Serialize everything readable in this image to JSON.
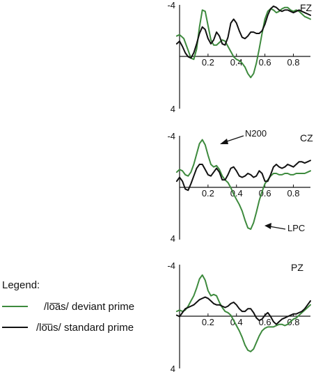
{
  "colors": {
    "deviant": "#3d8a3d",
    "standard": "#111111",
    "axis": "#111111"
  },
  "legend": {
    "title": "Legend:",
    "deviant_label": "/lo͞as/ deviant prime",
    "standard_label": "/lo͞us/  standard prime"
  },
  "chart_data": [
    {
      "type": "line",
      "title": "FZ",
      "xlim": [
        0,
        0.92
      ],
      "ylim": [
        -4,
        4
      ],
      "y_inverted": true,
      "xticks": [
        0.2,
        0.4,
        0.6,
        0.8
      ],
      "xtick_labels": [
        "0.2",
        "0.4",
        "0.6",
        "0.8"
      ],
      "ytick_labels": [
        "-4",
        "4"
      ],
      "grid": false,
      "annotations": [],
      "series": [
        {
          "key": "deviant",
          "x": [
            -0.02,
            0,
            0.03,
            0.06,
            0.08,
            0.1,
            0.12,
            0.14,
            0.16,
            0.18,
            0.2,
            0.22,
            0.24,
            0.26,
            0.28,
            0.3,
            0.32,
            0.34,
            0.36,
            0.38,
            0.4,
            0.42,
            0.44,
            0.46,
            0.48,
            0.5,
            0.52,
            0.54,
            0.56,
            0.58,
            0.6,
            0.62,
            0.64,
            0.66,
            0.68,
            0.7,
            0.72,
            0.74,
            0.76,
            0.78,
            0.8,
            0.82,
            0.84,
            0.86,
            0.88,
            0.9,
            0.92
          ],
          "y": [
            -1.6,
            -1.7,
            -1.4,
            -0.5,
            0.1,
            0.2,
            -0.6,
            -2.3,
            -3.6,
            -3.5,
            -2.4,
            -1.3,
            -0.9,
            -0.9,
            -1.1,
            -1.3,
            -1.2,
            -0.8,
            -0.4,
            0.0,
            0.2,
            0.3,
            0.5,
            0.8,
            1.3,
            1.6,
            1.3,
            0.5,
            -0.6,
            -1.8,
            -2.9,
            -3.5,
            -3.7,
            -3.6,
            -3.4,
            -3.5,
            -3.7,
            -3.8,
            -3.8,
            -3.6,
            -3.5,
            -3.6,
            -3.5,
            -3.3,
            -3.1,
            -3.0,
            -2.9
          ]
        },
        {
          "key": "standard",
          "x": [
            -0.02,
            0,
            0.02,
            0.04,
            0.06,
            0.08,
            0.1,
            0.12,
            0.14,
            0.16,
            0.18,
            0.2,
            0.22,
            0.24,
            0.26,
            0.28,
            0.3,
            0.32,
            0.34,
            0.36,
            0.38,
            0.4,
            0.42,
            0.44,
            0.46,
            0.48,
            0.5,
            0.52,
            0.54,
            0.56,
            0.58,
            0.6,
            0.62,
            0.64,
            0.66,
            0.68,
            0.7,
            0.72,
            0.74,
            0.76,
            0.78,
            0.8,
            0.82,
            0.84,
            0.86,
            0.88,
            0.9,
            0.92
          ],
          "y": [
            -1.0,
            -1.2,
            -0.8,
            -0.3,
            0.0,
            0.1,
            -0.3,
            -1.0,
            -1.8,
            -2.3,
            -2.1,
            -1.4,
            -1.0,
            -1.3,
            -1.9,
            -1.6,
            -1.0,
            -0.9,
            -1.5,
            -2.6,
            -2.9,
            -2.6,
            -2.0,
            -1.5,
            -1.4,
            -1.6,
            -1.9,
            -1.9,
            -1.8,
            -1.8,
            -2.0,
            -2.5,
            -3.2,
            -3.7,
            -3.9,
            -3.8,
            -3.6,
            -3.5,
            -3.6,
            -3.6,
            -3.5,
            -3.4,
            -3.5,
            -3.6,
            -3.5,
            -3.4,
            -3.3,
            -3.2
          ]
        }
      ]
    },
    {
      "type": "line",
      "title": "CZ",
      "xlim": [
        0,
        0.92
      ],
      "ylim": [
        -4,
        4
      ],
      "y_inverted": true,
      "xticks": [
        0.2,
        0.4,
        0.6,
        0.8
      ],
      "xtick_labels": [
        "0.2",
        "0.4",
        "0.6",
        "0.8"
      ],
      "ytick_labels": [
        "-4",
        "4"
      ],
      "grid": false,
      "annotations": [
        "N200",
        "LPC"
      ],
      "series": [
        {
          "key": "deviant",
          "x": [
            -0.02,
            0,
            0.02,
            0.04,
            0.06,
            0.08,
            0.1,
            0.12,
            0.14,
            0.16,
            0.18,
            0.2,
            0.22,
            0.24,
            0.26,
            0.28,
            0.3,
            0.32,
            0.34,
            0.36,
            0.38,
            0.4,
            0.42,
            0.44,
            0.46,
            0.48,
            0.5,
            0.52,
            0.54,
            0.56,
            0.58,
            0.6,
            0.62,
            0.64,
            0.66,
            0.68,
            0.7,
            0.72,
            0.74,
            0.76,
            0.78,
            0.8,
            0.82,
            0.84,
            0.86,
            0.88,
            0.9,
            0.92
          ],
          "y": [
            -1.2,
            -1.4,
            -1.3,
            -1.0,
            -0.9,
            -1.2,
            -1.8,
            -2.6,
            -3.4,
            -3.7,
            -3.3,
            -2.5,
            -1.8,
            -1.6,
            -1.7,
            -1.4,
            -0.9,
            -0.6,
            -0.4,
            0.0,
            0.5,
            0.9,
            1.3,
            1.8,
            2.5,
            3.1,
            3.2,
            2.7,
            1.9,
            1.0,
            0.3,
            -0.3,
            -0.6,
            -0.9,
            -1.1,
            -1.1,
            -1.0,
            -1.0,
            -1.1,
            -1.1,
            -1.0,
            -1.0,
            -1.1,
            -1.1,
            -1.1,
            -1.1,
            -1.2,
            -1.3
          ]
        },
        {
          "key": "standard",
          "x": [
            -0.02,
            0,
            0.02,
            0.04,
            0.06,
            0.08,
            0.1,
            0.12,
            0.14,
            0.16,
            0.18,
            0.2,
            0.22,
            0.24,
            0.26,
            0.28,
            0.3,
            0.32,
            0.34,
            0.36,
            0.38,
            0.4,
            0.42,
            0.44,
            0.46,
            0.48,
            0.5,
            0.52,
            0.54,
            0.56,
            0.58,
            0.6,
            0.62,
            0.64,
            0.66,
            0.68,
            0.7,
            0.72,
            0.74,
            0.76,
            0.78,
            0.8,
            0.82,
            0.84,
            0.86,
            0.88,
            0.9,
            0.92
          ],
          "y": [
            -0.5,
            -0.8,
            -0.5,
            0.1,
            0.2,
            -0.3,
            -0.9,
            -1.5,
            -1.8,
            -1.8,
            -1.4,
            -1.0,
            -0.9,
            -1.2,
            -1.5,
            -1.2,
            -0.6,
            -0.6,
            -1.0,
            -1.5,
            -1.6,
            -1.3,
            -0.9,
            -0.8,
            -0.9,
            -1.1,
            -1.0,
            -0.8,
            -0.9,
            -1.3,
            -1.1,
            -0.5,
            -0.5,
            -1.0,
            -1.6,
            -1.8,
            -1.6,
            -1.5,
            -1.6,
            -1.8,
            -1.7,
            -1.6,
            -1.8,
            -2.0,
            -2.0,
            -1.9,
            -2.0,
            -2.1
          ]
        }
      ]
    },
    {
      "type": "line",
      "title": "PZ",
      "xlim": [
        0,
        0.92
      ],
      "ylim": [
        -4,
        4
      ],
      "y_inverted": true,
      "xticks": [
        0.2,
        0.4,
        0.6,
        0.8
      ],
      "xtick_labels": [
        "0.2",
        "0.4",
        "0.6",
        "0.8"
      ],
      "ytick_labels": [
        "-4",
        "4"
      ],
      "grid": false,
      "annotations": [],
      "series": [
        {
          "key": "deviant",
          "x": [
            -0.02,
            0,
            0.02,
            0.04,
            0.06,
            0.08,
            0.1,
            0.12,
            0.14,
            0.16,
            0.18,
            0.2,
            0.22,
            0.24,
            0.26,
            0.28,
            0.3,
            0.32,
            0.34,
            0.36,
            0.38,
            0.4,
            0.42,
            0.44,
            0.46,
            0.48,
            0.5,
            0.52,
            0.54,
            0.56,
            0.58,
            0.6,
            0.62,
            0.64,
            0.66,
            0.68,
            0.7,
            0.72,
            0.74,
            0.76,
            0.78,
            0.8,
            0.82,
            0.84,
            0.86,
            0.88,
            0.9,
            0.92
          ],
          "y": [
            -0.4,
            -0.5,
            -0.4,
            -0.5,
            -0.8,
            -1.2,
            -1.6,
            -2.2,
            -2.9,
            -3.2,
            -2.8,
            -2.0,
            -1.6,
            -1.7,
            -1.6,
            -1.1,
            -0.7,
            -0.4,
            -0.3,
            -0.1,
            0.3,
            0.7,
            1.1,
            1.6,
            2.2,
            2.6,
            2.7,
            2.5,
            2.0,
            1.5,
            1.1,
            0.9,
            0.8,
            0.8,
            0.8,
            0.7,
            0.6,
            0.6,
            0.7,
            0.6,
            0.4,
            0.2,
            0.1,
            -0.1,
            -0.3,
            -0.5,
            -0.7,
            -0.9
          ]
        },
        {
          "key": "standard",
          "x": [
            -0.02,
            0,
            0.02,
            0.04,
            0.06,
            0.08,
            0.1,
            0.12,
            0.14,
            0.16,
            0.18,
            0.2,
            0.22,
            0.24,
            0.26,
            0.28,
            0.3,
            0.32,
            0.34,
            0.36,
            0.38,
            0.4,
            0.42,
            0.44,
            0.46,
            0.48,
            0.5,
            0.52,
            0.54,
            0.56,
            0.58,
            0.6,
            0.62,
            0.64,
            0.66,
            0.68,
            0.7,
            0.72,
            0.74,
            0.76,
            0.78,
            0.8,
            0.82,
            0.84,
            0.86,
            0.88,
            0.9,
            0.92
          ],
          "y": [
            -0.1,
            0.0,
            -0.3,
            -0.6,
            -0.7,
            -0.8,
            -0.9,
            -1.1,
            -1.3,
            -1.4,
            -1.5,
            -1.4,
            -1.2,
            -1.0,
            -0.9,
            -0.9,
            -0.8,
            -0.7,
            -0.8,
            -1.0,
            -1.1,
            -0.9,
            -0.6,
            -0.4,
            -0.4,
            -0.6,
            -0.6,
            -0.3,
            0.1,
            0.3,
            0.2,
            -0.1,
            -0.3,
            0.0,
            0.4,
            0.6,
            0.4,
            0.2,
            0.1,
            0.0,
            -0.1,
            -0.2,
            -0.2,
            -0.3,
            -0.4,
            -0.6,
            -0.9,
            -1.2
          ]
        }
      ]
    }
  ]
}
